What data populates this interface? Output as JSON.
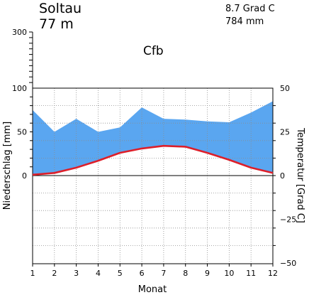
{
  "header": {
    "station": "Soltau",
    "elevation": "77 m",
    "mean_temperature": "8.7 Grad C",
    "annual_precipitation": "784 mm",
    "climate_class": "Cfb"
  },
  "chart_data": {
    "type": "line",
    "title": "",
    "xlabel": "Monat",
    "ylabel_left": "Niederschlag [mm]",
    "ylabel_right": "Temperatur [Grad C]",
    "x": [
      1,
      2,
      3,
      4,
      5,
      6,
      7,
      8,
      9,
      10,
      11,
      12
    ],
    "x_ticks": [
      "1",
      "2",
      "3",
      "4",
      "5",
      "6",
      "7",
      "8",
      "9",
      "10",
      "11",
      "12"
    ],
    "precip_ticks": [
      "0",
      "50",
      "100",
      "300"
    ],
    "temp_ticks": [
      "50",
      "25",
      "0",
      "−25",
      "−50"
    ],
    "precip_ylim": [
      0,
      100
    ],
    "precip_compressed_max": 300,
    "temp_ylim": [
      -50,
      50
    ],
    "grid": true,
    "series": [
      {
        "role": "precipitation",
        "unit": "mm",
        "axis": "left",
        "color": "#5aa6f0",
        "values": [
          75,
          50,
          65,
          50,
          55,
          78,
          65,
          64,
          62,
          61,
          72,
          85
        ]
      },
      {
        "role": "temperature",
        "unit": "Grad C",
        "axis": "right",
        "color": "#dd1f2a",
        "values": [
          0.5,
          1.5,
          4.5,
          8.5,
          13.0,
          15.5,
          17.0,
          16.5,
          13.0,
          9.0,
          4.5,
          1.5
        ]
      }
    ]
  }
}
